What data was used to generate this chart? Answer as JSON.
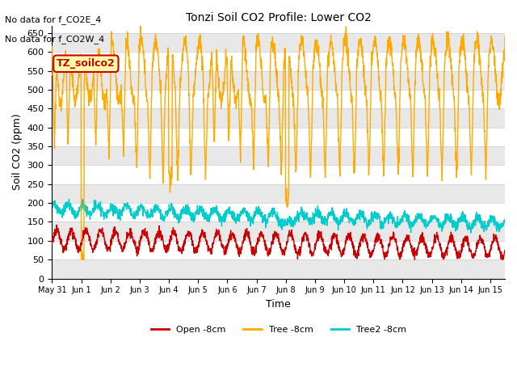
{
  "title": "Tonzi Soil CO2 Profile: Lower CO2",
  "xlabel": "Time",
  "ylabel": "Soil CO2 (ppm)",
  "ylim": [
    0,
    670
  ],
  "yticks": [
    0,
    50,
    100,
    150,
    200,
    250,
    300,
    350,
    400,
    450,
    500,
    550,
    600,
    650
  ],
  "xstart_day": 0,
  "xend_day": 15.5,
  "xtick_labels": [
    "May 31",
    "Jun 1",
    "Jun 2",
    "Jun 3",
    "Jun 4",
    "Jun 5",
    "Jun 6",
    "Jun 7",
    "Jun 8",
    "Jun 9",
    "Jun 10",
    "Jun 11",
    "Jun 12",
    "Jun 13",
    "Jun 14",
    "Jun 15"
  ],
  "xtick_positions": [
    0,
    1,
    2,
    3,
    4,
    5,
    6,
    7,
    8,
    9,
    10,
    11,
    12,
    13,
    14,
    15
  ],
  "colors": {
    "open": "#cc0000",
    "tree": "#ffaa00",
    "tree2": "#00cccc"
  },
  "legend_label_open": "Open -8cm",
  "legend_label_tree": "Tree -8cm",
  "legend_label_tree2": "Tree2 -8cm",
  "annotation1": "No data for f_CO2E_4",
  "annotation2": "No data for f_CO2W_4",
  "boxlabel": "TZ_soilco2",
  "background_color": "#ffffff",
  "grid_color": "#cccccc",
  "fig_width": 6.4,
  "fig_height": 4.8,
  "dpi": 100
}
